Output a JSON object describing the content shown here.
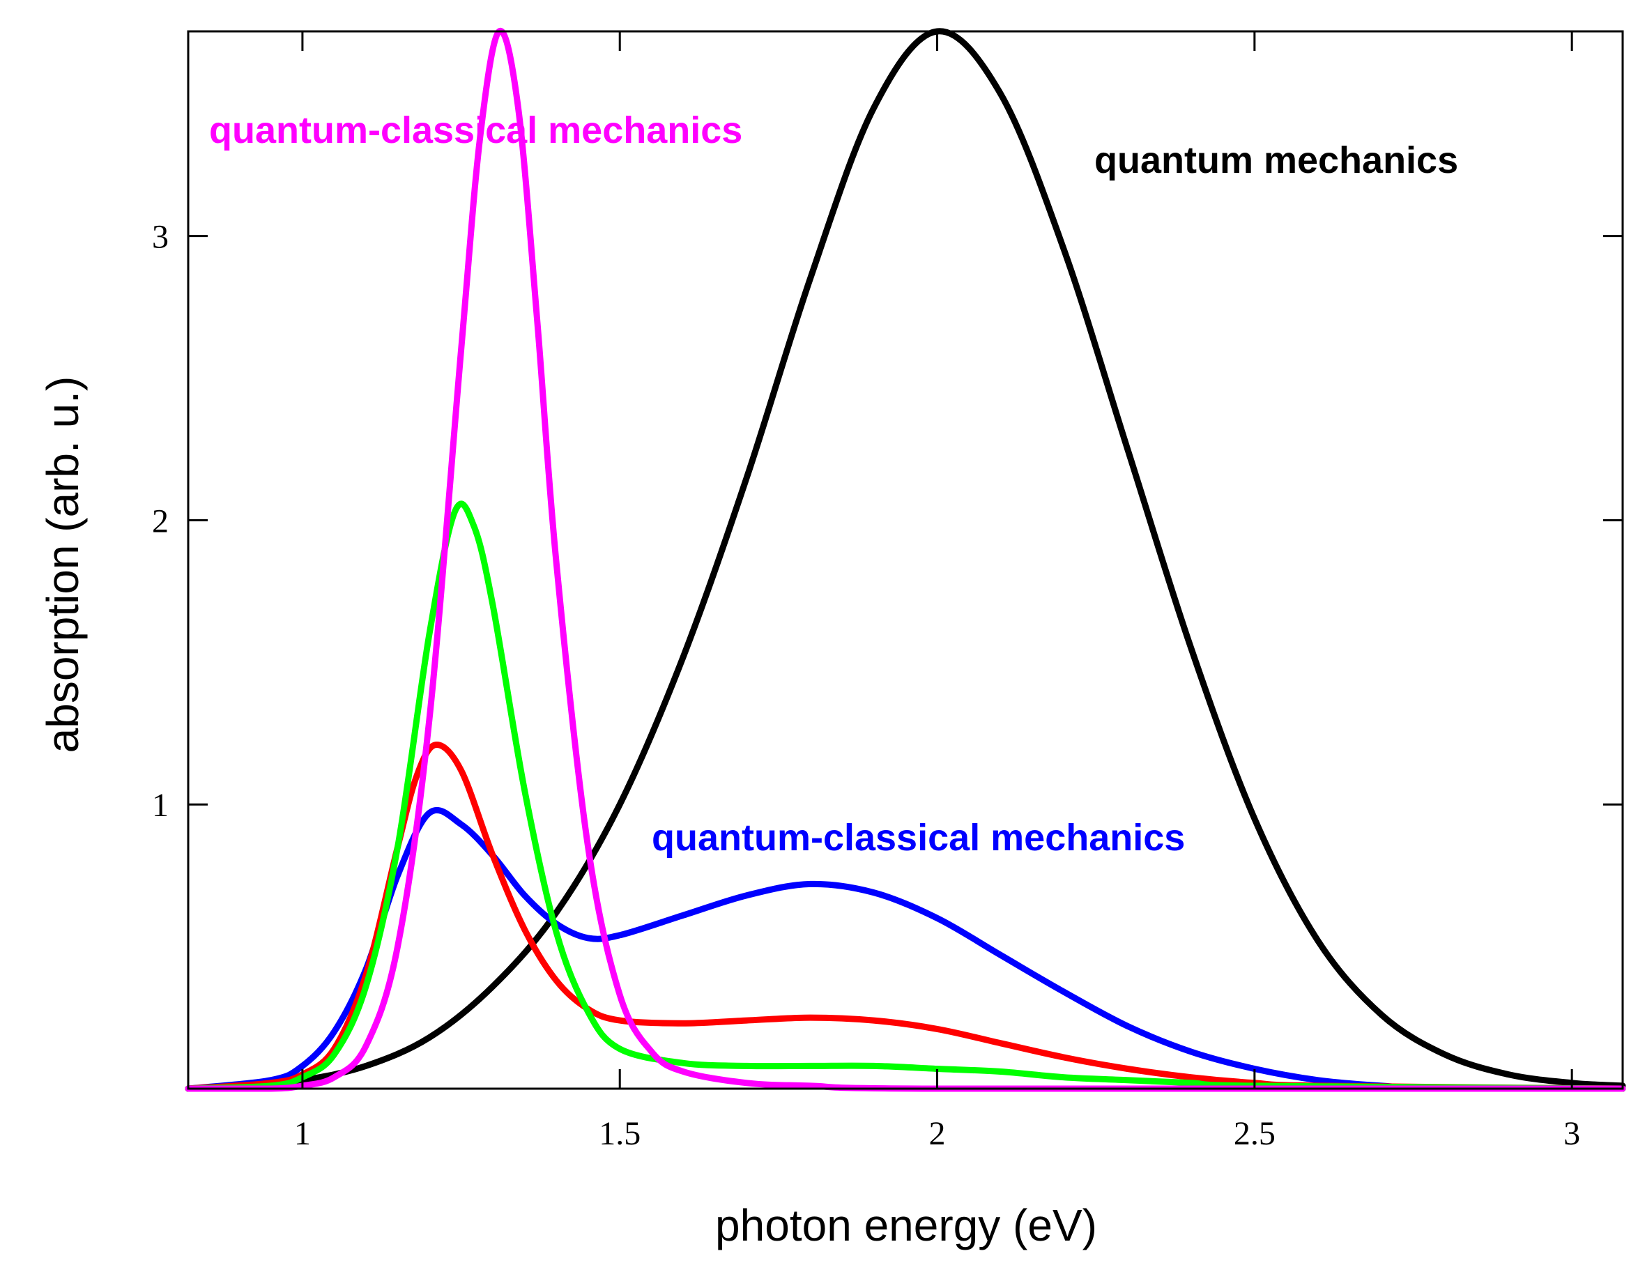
{
  "chart_data": {
    "type": "line",
    "xlabel": "photon energy (eV)",
    "ylabel": "absorption (arb. u.)",
    "xlim": [
      0.82,
      3.08
    ],
    "ylim": [
      0,
      3.72
    ],
    "xticks": [
      {
        "value": 1,
        "label": "1"
      },
      {
        "value": 1.5,
        "label": "1.5"
      },
      {
        "value": 2,
        "label": "2"
      },
      {
        "value": 2.5,
        "label": "2.5"
      },
      {
        "value": 3,
        "label": "3"
      }
    ],
    "yticks": [
      {
        "value": 1,
        "label": "1"
      },
      {
        "value": 2,
        "label": "2"
      },
      {
        "value": 3,
        "label": "3"
      }
    ],
    "grid": false,
    "series": [
      {
        "name": "quantum mechanics",
        "color": "#000000",
        "x": [
          0.82,
          0.9,
          1.0,
          1.1,
          1.2,
          1.3,
          1.4,
          1.5,
          1.6,
          1.7,
          1.8,
          1.9,
          2.0,
          2.1,
          2.2,
          2.3,
          2.4,
          2.5,
          2.6,
          2.7,
          2.8,
          2.9,
          3.0,
          3.08
        ],
        "values": [
          0.0,
          0.01,
          0.03,
          0.08,
          0.18,
          0.36,
          0.62,
          1.0,
          1.52,
          2.15,
          2.85,
          3.45,
          3.72,
          3.5,
          2.95,
          2.25,
          1.55,
          0.95,
          0.52,
          0.26,
          0.12,
          0.05,
          0.02,
          0.01
        ]
      },
      {
        "name": "quantum-classical mechanics",
        "color": "#0000ff",
        "x": [
          0.82,
          0.95,
          1.0,
          1.05,
          1.1,
          1.15,
          1.2,
          1.25,
          1.3,
          1.35,
          1.4,
          1.45,
          1.5,
          1.6,
          1.7,
          1.8,
          1.9,
          2.0,
          2.1,
          2.2,
          2.3,
          2.4,
          2.5,
          2.6,
          2.7,
          2.8,
          3.08
        ],
        "values": [
          0.0,
          0.03,
          0.08,
          0.2,
          0.42,
          0.75,
          0.97,
          0.93,
          0.82,
          0.68,
          0.58,
          0.53,
          0.54,
          0.61,
          0.68,
          0.72,
          0.69,
          0.6,
          0.47,
          0.34,
          0.22,
          0.13,
          0.07,
          0.03,
          0.01,
          0.0,
          0.0
        ]
      },
      {
        "name": "red",
        "color": "#ff0000",
        "x": [
          0.82,
          0.95,
          1.0,
          1.05,
          1.1,
          1.15,
          1.18,
          1.21,
          1.25,
          1.3,
          1.35,
          1.4,
          1.45,
          1.5,
          1.6,
          1.7,
          1.8,
          1.9,
          2.0,
          2.1,
          2.2,
          2.3,
          2.4,
          2.5,
          2.6,
          3.08
        ],
        "values": [
          0.0,
          0.02,
          0.05,
          0.14,
          0.4,
          0.85,
          1.1,
          1.21,
          1.12,
          0.82,
          0.56,
          0.38,
          0.28,
          0.24,
          0.23,
          0.24,
          0.25,
          0.24,
          0.21,
          0.16,
          0.11,
          0.07,
          0.04,
          0.02,
          0.01,
          0.0
        ]
      },
      {
        "name": "green",
        "color": "#00ff00",
        "x": [
          0.82,
          0.95,
          1.0,
          1.05,
          1.1,
          1.15,
          1.2,
          1.24,
          1.27,
          1.3,
          1.35,
          1.4,
          1.45,
          1.5,
          1.6,
          1.7,
          1.8,
          1.9,
          2.0,
          2.1,
          2.2,
          2.3,
          2.4,
          2.5,
          3.08
        ],
        "values": [
          0.0,
          0.01,
          0.04,
          0.12,
          0.36,
          0.85,
          1.6,
          2.03,
          1.98,
          1.7,
          1.05,
          0.55,
          0.27,
          0.14,
          0.09,
          0.08,
          0.08,
          0.08,
          0.07,
          0.06,
          0.04,
          0.03,
          0.02,
          0.01,
          0.0
        ]
      },
      {
        "name": "quantum-classical mechanics",
        "color": "#ff00ff",
        "x": [
          0.82,
          0.95,
          1.0,
          1.05,
          1.1,
          1.15,
          1.2,
          1.25,
          1.28,
          1.31,
          1.34,
          1.37,
          1.4,
          1.45,
          1.5,
          1.55,
          1.6,
          1.7,
          1.8,
          2.0,
          3.08
        ],
        "values": [
          0.0,
          0.0,
          0.01,
          0.04,
          0.15,
          0.5,
          1.3,
          2.6,
          3.35,
          3.72,
          3.45,
          2.7,
          1.85,
          0.85,
          0.33,
          0.13,
          0.06,
          0.02,
          0.01,
          0.0,
          0.0
        ]
      }
    ],
    "annotations": [
      {
        "text": "quantum-classical mechanics",
        "color": "#ff00ff"
      },
      {
        "text": "quantum mechanics",
        "color": "#000000"
      },
      {
        "text": "quantum-classical mechanics",
        "color": "#0000ff"
      }
    ]
  }
}
